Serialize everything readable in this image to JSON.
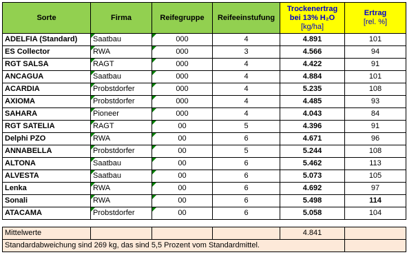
{
  "headers": {
    "sorte": "Sorte",
    "firma": "Firma",
    "reifegruppe": "Reifegruppe",
    "reifeeinstufung": "Reifeeinstufung",
    "trockenertrag_line1": "Trockenertrag",
    "trockenertrag_line2": "bei 13% H₂O",
    "trockenertrag_unit": "[kg/ha]",
    "ertrag_line1": "Ertrag",
    "ertrag_unit": "[rel. %]"
  },
  "rows": [
    {
      "sorte": "ADELFIA (Standard)",
      "firma": "Saatbau",
      "reifegruppe": "000",
      "reifeeinstufung": "4",
      "trockenertrag": "4.891",
      "ertrag": "101"
    },
    {
      "sorte": "ES Collector",
      "firma": "RWA",
      "reifegruppe": "000",
      "reifeeinstufung": "3",
      "trockenertrag": "4.566",
      "ertrag": "94"
    },
    {
      "sorte": "RGT SALSA",
      "firma": "RAGT",
      "reifegruppe": "000",
      "reifeeinstufung": "4",
      "trockenertrag": "4.422",
      "ertrag": "91"
    },
    {
      "sorte": "ANCAGUA",
      "firma": "Saatbau",
      "reifegruppe": "000",
      "reifeeinstufung": "4",
      "trockenertrag": "4.884",
      "ertrag": "101"
    },
    {
      "sorte": "ACARDIA",
      "firma": "Probstdorfer",
      "reifegruppe": "000",
      "reifeeinstufung": "4",
      "trockenertrag": "5.235",
      "ertrag": "108"
    },
    {
      "sorte": "AXIOMA",
      "firma": "Probstdorfer",
      "reifegruppe": "000",
      "reifeeinstufung": "4",
      "trockenertrag": "4.485",
      "ertrag": "93"
    },
    {
      "sorte": "SAHARA",
      "firma": "Pioneer",
      "reifegruppe": "000",
      "reifeeinstufung": "4",
      "trockenertrag": "4.043",
      "ertrag": "84"
    },
    {
      "sorte": "RGT SATELIA",
      "firma": "RAGT",
      "reifegruppe": "00",
      "reifeeinstufung": "5",
      "trockenertrag": "4.396",
      "ertrag": "91"
    },
    {
      "sorte": "Delphi PZO",
      "firma": "RWA",
      "reifegruppe": "00",
      "reifeeinstufung": "6",
      "trockenertrag": "4.671",
      "ertrag": "96"
    },
    {
      "sorte": "ANNABELLA",
      "firma": "Probstdorfer",
      "reifegruppe": "00",
      "reifeeinstufung": "5",
      "trockenertrag": "5.244",
      "ertrag": "108"
    },
    {
      "sorte": "ALTONA",
      "firma": "Saatbau",
      "reifegruppe": "00",
      "reifeeinstufung": "6",
      "trockenertrag": "5.462",
      "ertrag": "113"
    },
    {
      "sorte": "ALVESTA",
      "firma": "Saatbau",
      "reifegruppe": "00",
      "reifeeinstufung": "6",
      "trockenertrag": "5.073",
      "ertrag": "105"
    },
    {
      "sorte": "Lenka",
      "firma": "RWA",
      "reifegruppe": "00",
      "reifeeinstufung": "6",
      "trockenertrag": "4.692",
      "ertrag": "97"
    },
    {
      "sorte": "Sonali",
      "firma": "RWA",
      "reifegruppe": "00",
      "reifeeinstufung": "6",
      "trockenertrag": "5.498",
      "ertrag": "114",
      "ertrag_bold": true
    },
    {
      "sorte": "ATACAMA",
      "firma": "Probstdorfer",
      "reifegruppe": "00",
      "reifeeinstufung": "6",
      "trockenertrag": "5.058",
      "ertrag": "104"
    }
  ],
  "footer": {
    "mittelwerte_label": "Mittelwerte",
    "mittelwerte_value": "4.841",
    "note": "Standardabweichung sind 269 kg, das sind 5,5 Prozent vom Standardmittel."
  },
  "colors": {
    "header_green": "#92d050",
    "header_yellow": "#ffff00",
    "footer_peach": "#fde9d9",
    "corner_marker": "#008000"
  }
}
